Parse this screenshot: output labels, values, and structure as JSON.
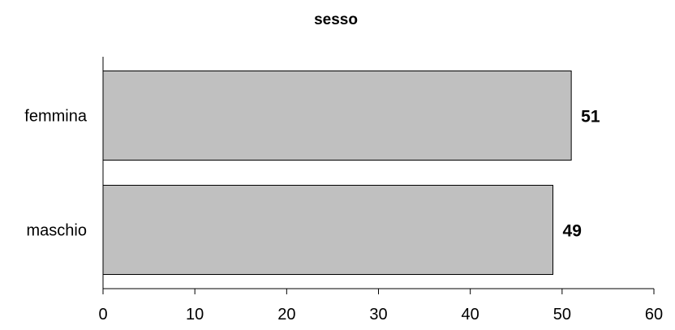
{
  "chart_data": {
    "type": "bar",
    "orientation": "horizontal",
    "title": "sesso",
    "categories": [
      "femmina",
      "maschio"
    ],
    "values": [
      51,
      49
    ],
    "xlabel": "",
    "ylabel": "",
    "xlim": [
      0,
      60
    ],
    "x_ticks": [
      0,
      10,
      20,
      30,
      40,
      50,
      60
    ],
    "grid": false,
    "legend": "none",
    "bar_color": "#c0c0c0",
    "data_labels": [
      "51",
      "49"
    ]
  }
}
